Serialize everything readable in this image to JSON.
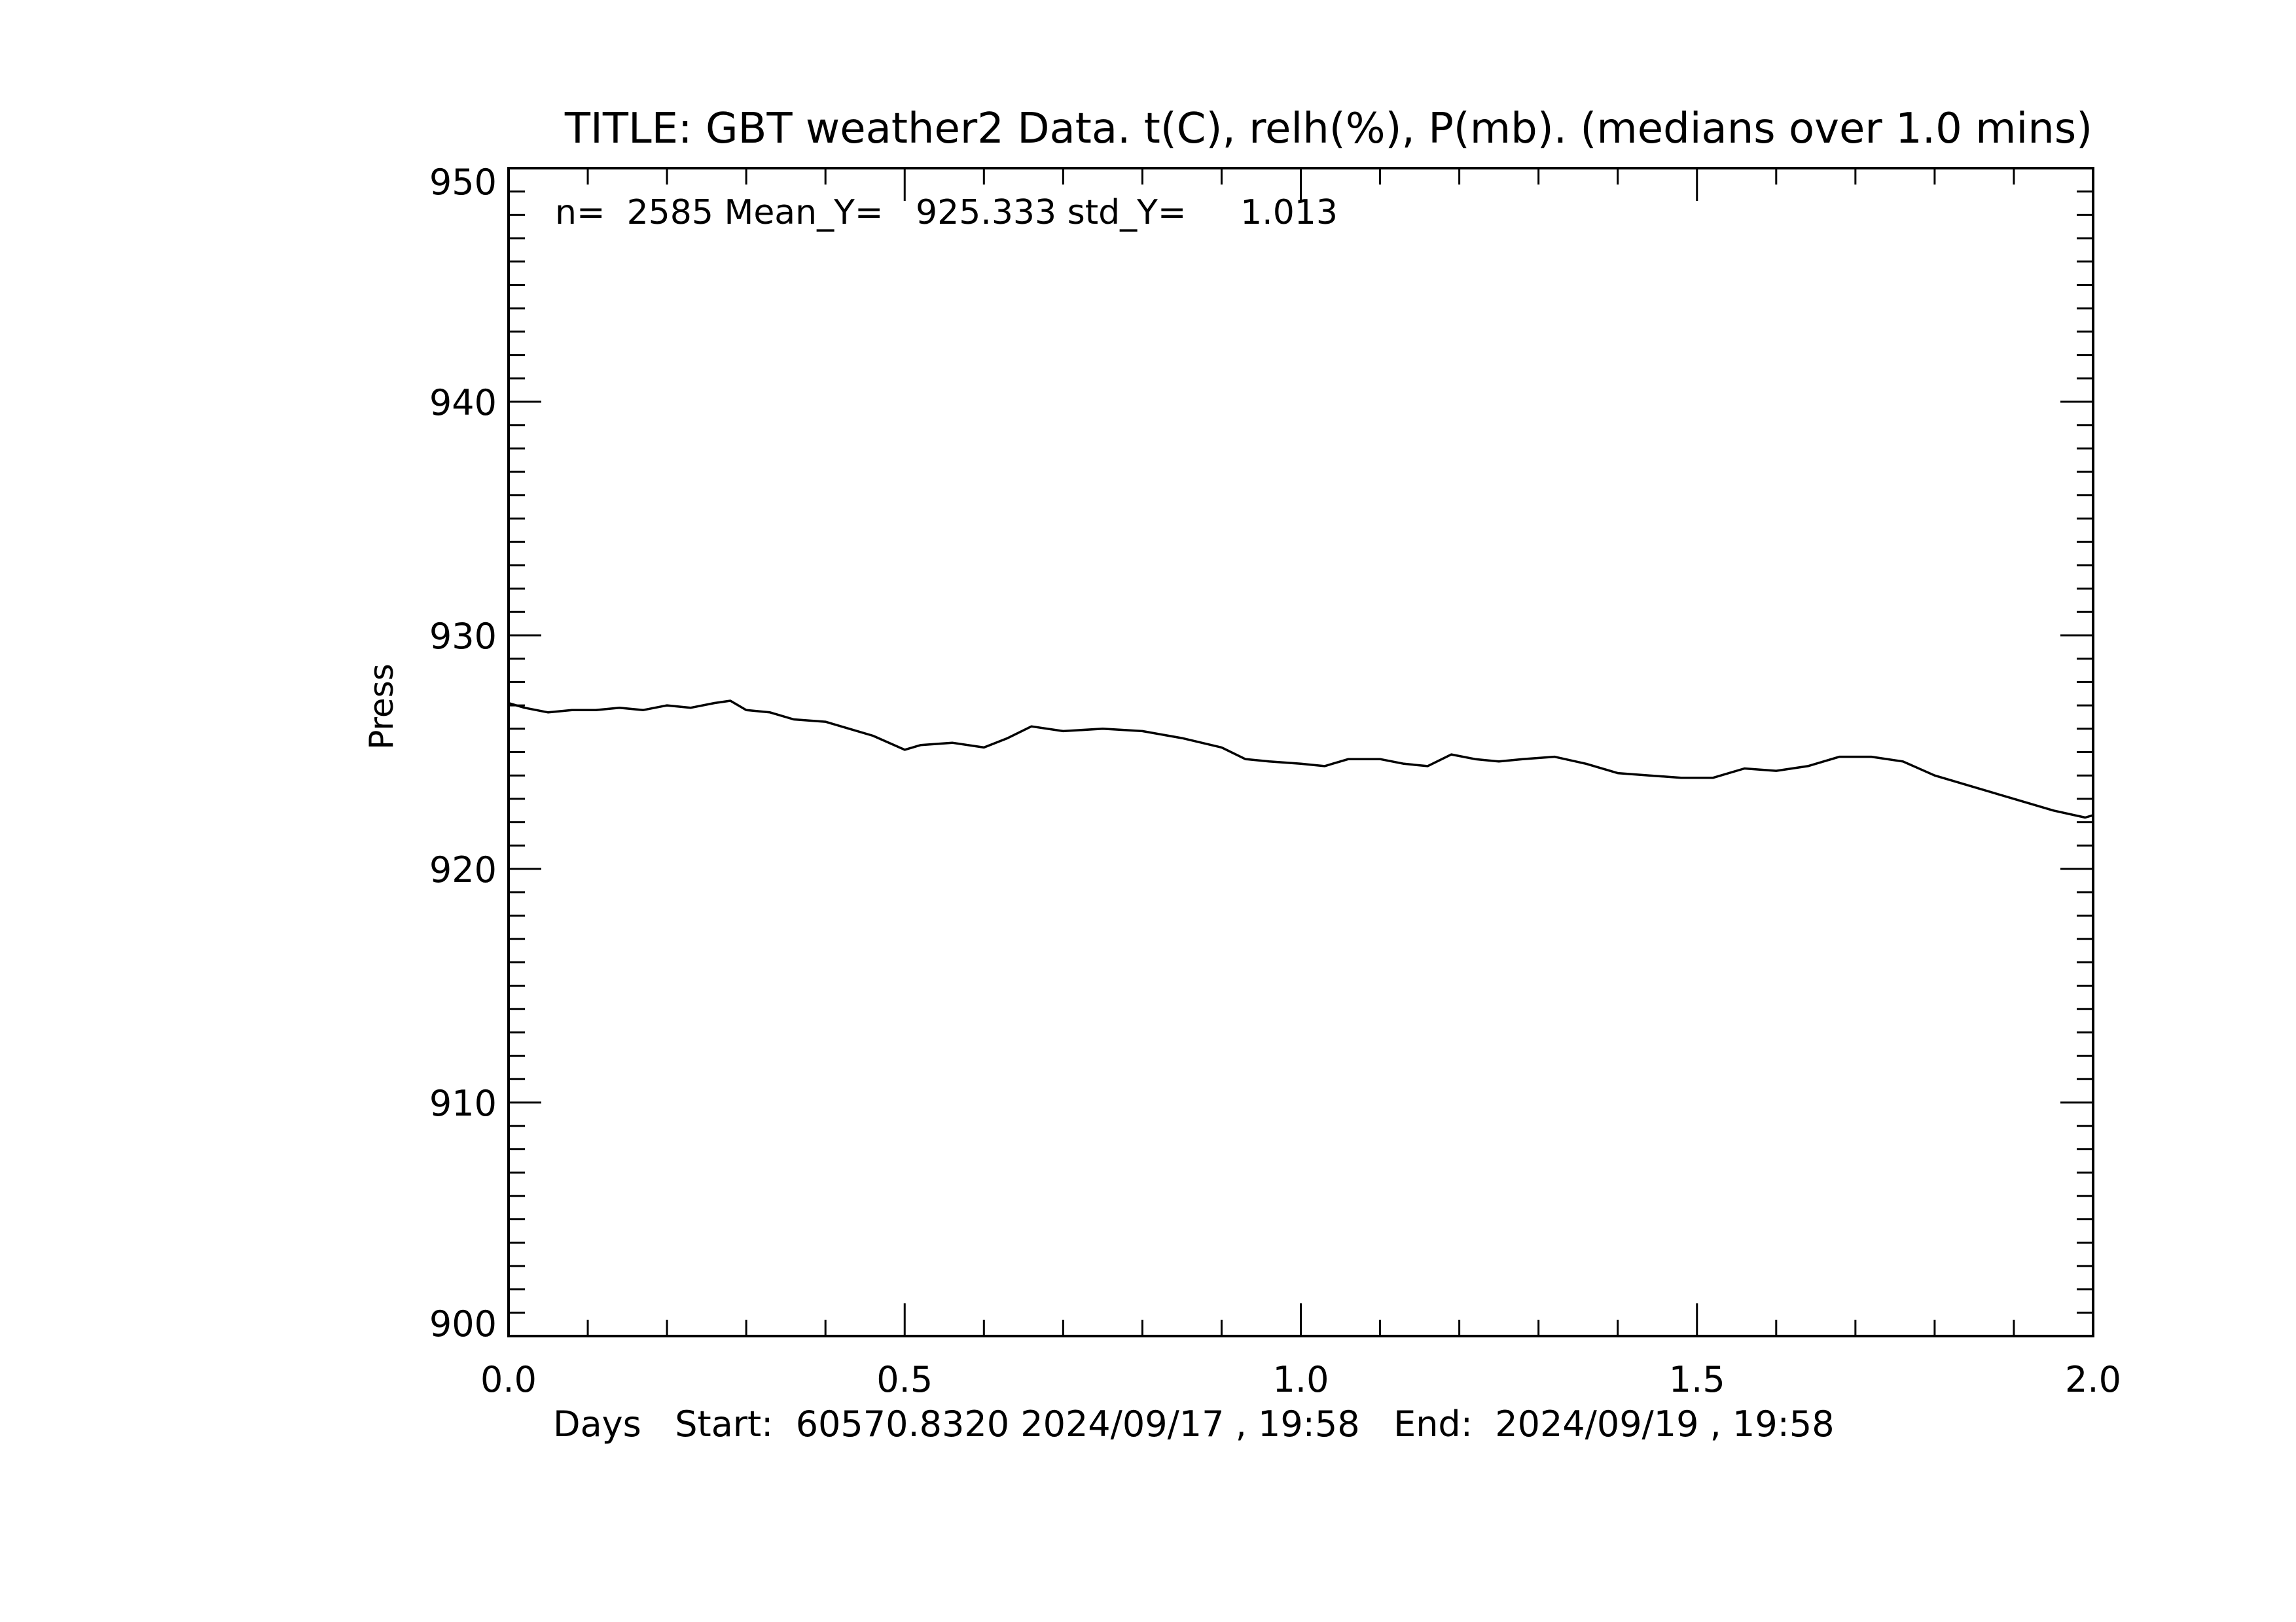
{
  "chart_data": {
    "type": "line",
    "title": "TITLE: GBT weather2 Data. t(C), relh(%), P(mb). (medians over 1.0 mins)",
    "xlabel": "Days   Start:  60570.8320 2024/09/17 , 19:58   End:  2024/09/19 , 19:58",
    "ylabel": "Press",
    "stats_text": "n=  2585 Mean_Y=   925.333 std_Y=     1.013",
    "xlim": [
      0.0,
      2.0
    ],
    "ylim": [
      900,
      950
    ],
    "x_ticks": [
      "0.0",
      "0.5",
      "1.0",
      "1.5",
      "2.0"
    ],
    "y_ticks": [
      "900",
      "910",
      "920",
      "930",
      "940",
      "950"
    ],
    "grid": false,
    "line_color": "#000000",
    "series": [
      {
        "x": [
          0.0,
          0.02,
          0.05,
          0.08,
          0.11,
          0.14,
          0.17,
          0.2,
          0.23,
          0.26,
          0.28,
          0.3,
          0.33,
          0.36,
          0.4,
          0.43,
          0.46,
          0.5,
          0.52,
          0.56,
          0.6,
          0.63,
          0.66,
          0.7,
          0.75,
          0.8,
          0.85,
          0.9,
          0.93,
          0.96,
          1.0,
          1.03,
          1.06,
          1.1,
          1.13,
          1.16,
          1.19,
          1.22,
          1.25,
          1.28,
          1.32,
          1.36,
          1.4,
          1.44,
          1.48,
          1.52,
          1.56,
          1.6,
          1.64,
          1.68,
          1.72,
          1.76,
          1.8,
          1.85,
          1.9,
          1.95,
          1.99,
          2.0
        ],
        "y": [
          927.1,
          926.9,
          926.7,
          926.8,
          926.8,
          926.9,
          926.8,
          927.0,
          926.9,
          927.1,
          927.2,
          926.8,
          926.7,
          926.4,
          926.3,
          926.0,
          925.7,
          925.1,
          925.3,
          925.4,
          925.2,
          925.6,
          926.1,
          925.9,
          926.0,
          925.9,
          925.6,
          925.2,
          924.7,
          924.6,
          924.5,
          924.4,
          924.7,
          924.7,
          924.5,
          924.4,
          924.9,
          924.7,
          924.6,
          924.7,
          924.8,
          924.5,
          924.1,
          924.0,
          923.9,
          923.9,
          924.3,
          924.2,
          924.4,
          924.8,
          924.8,
          924.6,
          924.0,
          923.5,
          923.0,
          922.5,
          922.2,
          922.3
        ]
      }
    ]
  }
}
